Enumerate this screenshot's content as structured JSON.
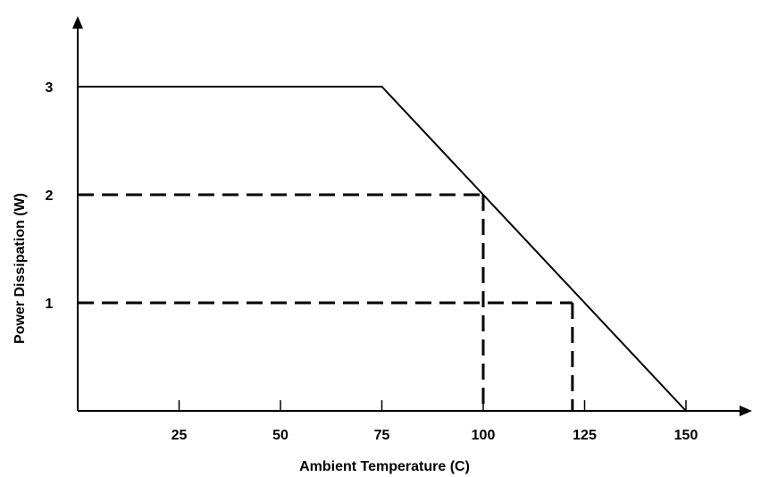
{
  "chart_data": {
    "type": "line",
    "title": "",
    "xlabel": "Ambient Temperature  (C)",
    "ylabel": "Power Dissipation (W)",
    "xlim": [
      0,
      165
    ],
    "ylim": [
      0,
      3.4
    ],
    "x_ticks": [
      {
        "value": 25,
        "label": "25"
      },
      {
        "value": 50,
        "label": "50"
      },
      {
        "value": 75,
        "label": "75"
      },
      {
        "value": 100,
        "label": "100"
      },
      {
        "value": 125,
        "label": "125"
      },
      {
        "value": 150,
        "label": "150"
      }
    ],
    "y_ticks": [
      {
        "value": 1,
        "label": "1"
      },
      {
        "value": 2,
        "label": "2"
      },
      {
        "value": 3,
        "label": "3"
      }
    ],
    "series": [
      {
        "points": [
          {
            "x": 0,
            "y": 3
          },
          {
            "x": 75,
            "y": 3
          },
          {
            "x": 150,
            "y": 0
          }
        ]
      }
    ],
    "reference_lines": [
      {
        "x": 100,
        "y": 2
      },
      {
        "x": 122,
        "y": 1
      }
    ],
    "grid": false,
    "legend": "none"
  }
}
